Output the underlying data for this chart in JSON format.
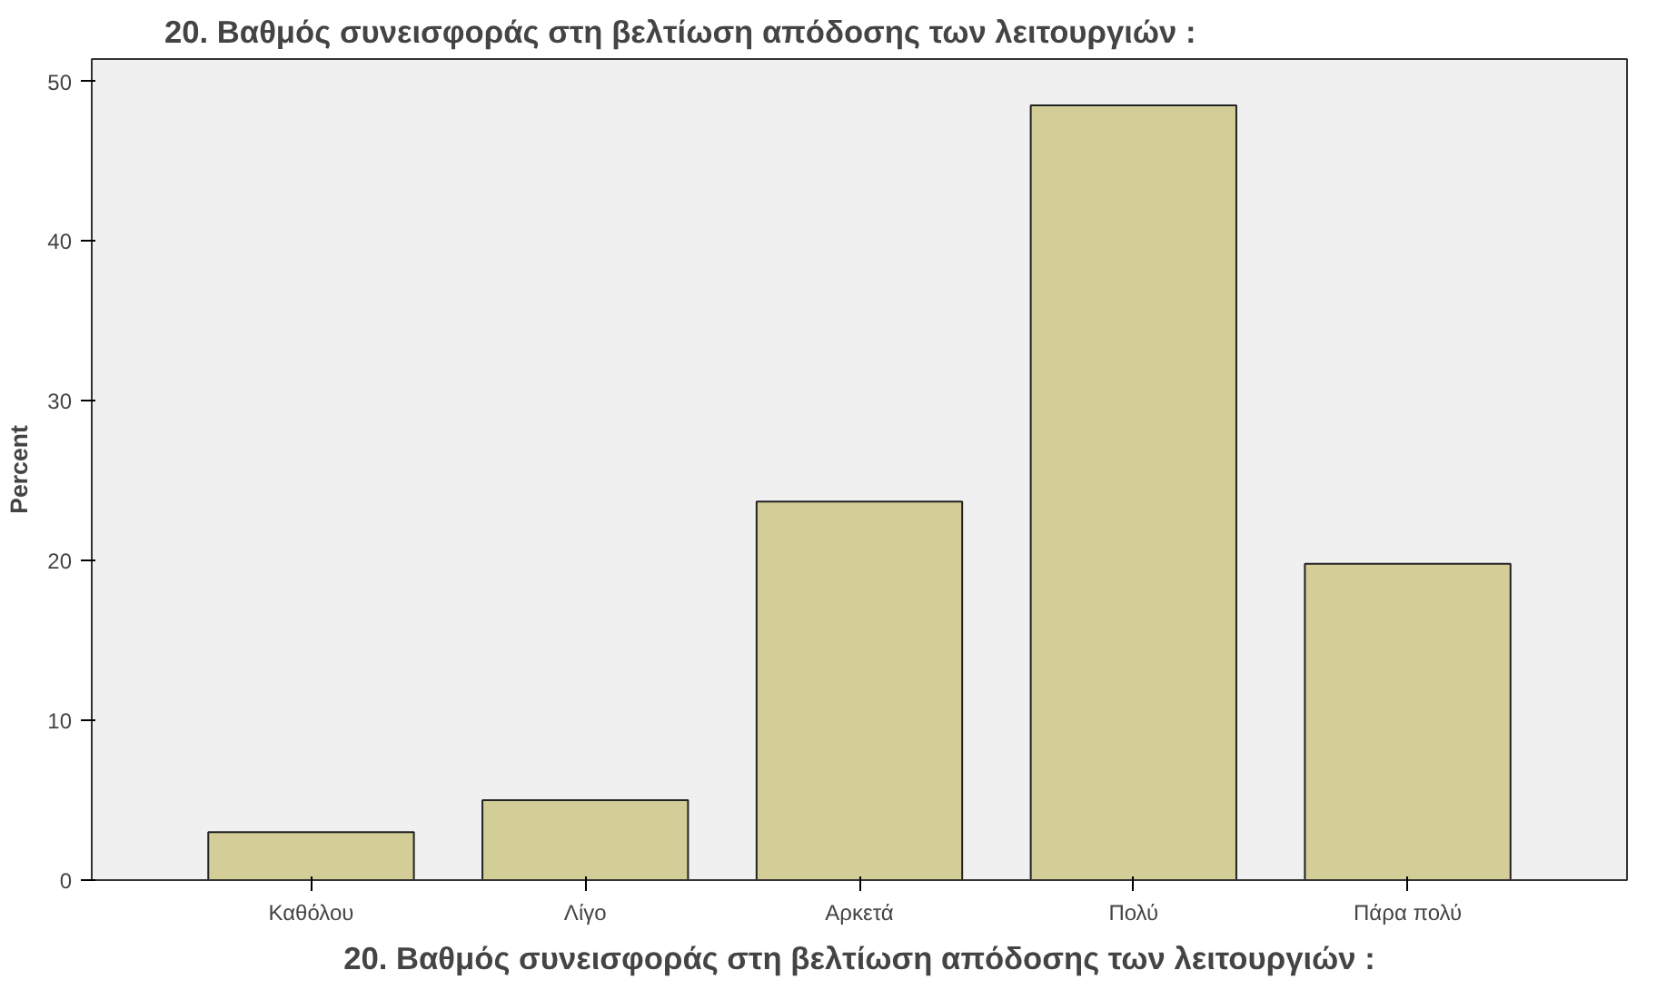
{
  "chart_data": {
    "type": "bar",
    "title": "20. Βαθμός συνεισφοράς στη βελτίωση απόδοσης των λειτουργιών :",
    "xlabel": "20. Βαθμός συνεισφοράς στη βελτίωση απόδοσης των λειτουργιών :",
    "ylabel": "Percent",
    "categories": [
      "Καθόλου",
      "Λίγο",
      "Αρκετά",
      "Πολύ",
      "Πάρα πολύ"
    ],
    "values": [
      3.0,
      5.0,
      23.7,
      48.5,
      19.8
    ],
    "color": "#d3ce97",
    "ylim": [
      0,
      51.4
    ],
    "yticks": [
      0,
      10,
      20,
      30,
      40,
      50
    ],
    "grid": false
  }
}
